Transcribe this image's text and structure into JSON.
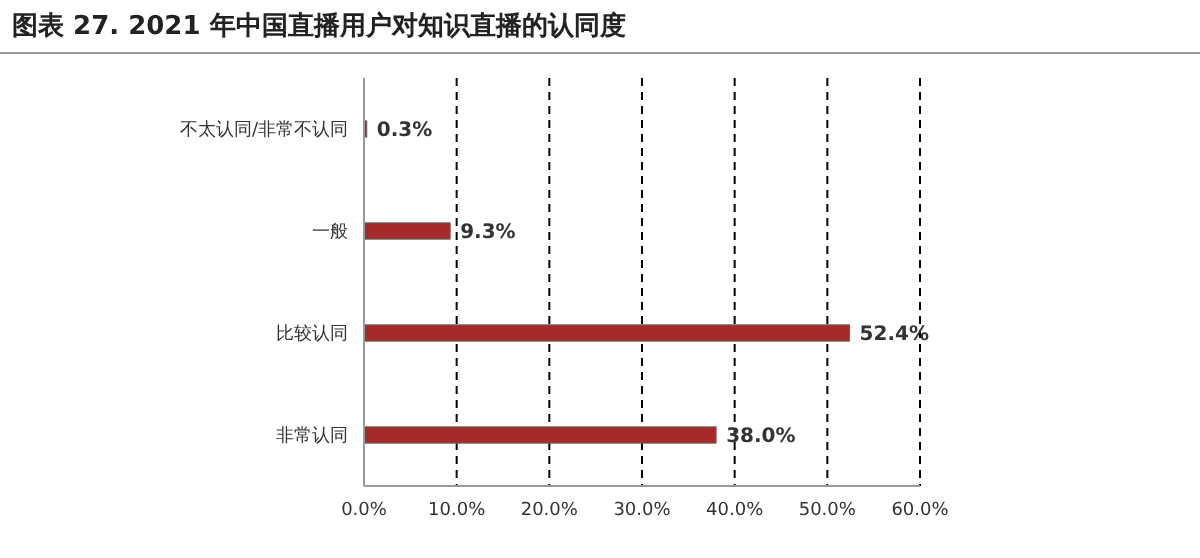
{
  "chart_data": {
    "type": "bar",
    "title": "图表 27. 2021 年中国直播用户对知识直播的认同度",
    "orientation": "horizontal",
    "categories": [
      "不太认同/非常不认同",
      "一般",
      "比较认同",
      "非常认同"
    ],
    "values": [
      0.3,
      9.3,
      52.4,
      38.0
    ],
    "value_labels": [
      "0.3%",
      "9.3%",
      "52.4%",
      "38.0%"
    ],
    "color": "#a52a2a",
    "xlim": [
      0,
      60
    ],
    "xticks": [
      {
        "value": 0,
        "label": "0.0%"
      },
      {
        "value": 10,
        "label": "10.0%"
      },
      {
        "value": 20,
        "label": "20.0%"
      },
      {
        "value": 30,
        "label": "30.0%"
      },
      {
        "value": 40,
        "label": "40.0%"
      },
      {
        "value": 50,
        "label": "50.0%"
      },
      {
        "value": 60,
        "label": "60.0%"
      }
    ],
    "grid": "x",
    "line_style": "dashed"
  }
}
